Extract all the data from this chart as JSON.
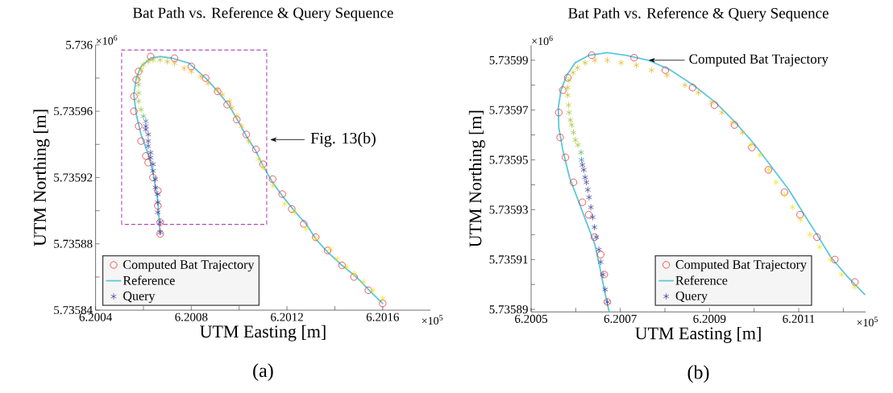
{
  "chart_data": [
    {
      "type": "line",
      "title": "Bat Path vs. Reference & Query Sequence",
      "xlabel": "UTM Easting [m]",
      "ylabel": "UTM Northing [m]",
      "xlim": [
        6.2004,
        6.2018
      ],
      "ylim": [
        5.73584,
        5.736
      ],
      "xticks": [
        6.2004,
        {
          "value": 6.2006,
          "label": null
        },
        6.2008,
        {
          "value": 6.201,
          "label": null
        },
        6.2012,
        {
          "value": 6.2014,
          "label": null
        },
        6.2016
      ],
      "yticks": [
        5.73584,
        {
          "value": 5.73586,
          "label": null
        },
        5.73588,
        {
          "value": 5.7359,
          "label": null
        },
        5.73592,
        {
          "value": 5.73594,
          "label": null
        },
        5.73596,
        {
          "value": 5.73598,
          "label": null
        },
        5.736
      ],
      "legend": "bottom left",
      "annotations": [
        "Fig. 13(b)",
        "×10$^{5}$",
        "×10$^{6}$",
        "(a)"
      ],
      "series": [
        {
          "type": "scatter",
          "marker": "circle",
          "color": "#e8262a",
          "name": "Computed Bat Trajectory",
          "x": [
            6.20067,
            6.20067,
            6.20066,
            6.20066,
            6.20064,
            6.20062,
            6.20061,
            6.20059,
            6.20058,
            6.20056,
            6.20056,
            6.20057,
            6.20058,
            6.20063,
            6.20073,
            6.2008,
            6.20086,
            6.20091,
            6.20095,
            6.20099,
            6.20103,
            6.20107,
            6.2011,
            6.20114,
            6.20118,
            6.20122,
            6.20127,
            6.20132,
            6.20137,
            6.20143,
            6.20148,
            6.20154,
            6.2016
          ],
          "values": [
            5.735886,
            5.735893,
            5.735903,
            5.735912,
            5.73592,
            5.735929,
            5.735933,
            5.735942,
            5.735951,
            5.73596,
            5.735969,
            5.735979,
            5.735984,
            5.735993,
            5.735992,
            5.735987,
            5.73598,
            5.735972,
            5.735964,
            5.735955,
            5.735946,
            5.735937,
            5.735928,
            5.735919,
            5.73591,
            5.735901,
            5.735892,
            5.735884,
            5.735876,
            5.735867,
            5.73586,
            5.735852,
            5.735844
          ]
        },
        {
          "type": "line",
          "color": "#5bc8dc",
          "name": "Reference",
          "x": [
            6.20067,
            6.20066,
            6.20064,
            6.20062,
            6.20059,
            6.20057,
            6.20056,
            6.20057,
            6.20059,
            6.20063,
            6.20067,
            6.20072,
            6.20079,
            6.20086,
            6.20091,
            6.20096,
            6.201,
            6.20103,
            6.20107,
            6.2011,
            6.20114,
            6.20118,
            6.20123,
            6.20128,
            6.20132,
            6.20137,
            6.20143,
            6.20149,
            6.20155,
            6.2016
          ],
          "values": [
            5.735886,
            5.735906,
            5.735923,
            5.735934,
            5.735946,
            5.735958,
            5.73597,
            5.73598,
            5.735987,
            5.735992,
            5.735993,
            5.735992,
            5.735989,
            5.73598,
            5.735972,
            5.735963,
            5.735953,
            5.735945,
            5.735936,
            5.735927,
            5.735917,
            5.735909,
            5.7359,
            5.735892,
            5.735883,
            5.735875,
            5.735867,
            5.73586,
            5.735851,
            5.735844
          ]
        },
        {
          "type": "scatter",
          "marker": "cross",
          "color": "#3d3d9a",
          "name": "Query",
          "x": [
            6.20067,
            6.20067,
            6.20066,
            6.20066,
            6.20066,
            6.20065,
            6.20065,
            6.20064,
            6.20064,
            6.20063,
            6.20063,
            6.20062,
            6.20062,
            6.20062,
            6.20061,
            6.20061,
            6.20061,
            6.2006,
            6.20059,
            6.20058,
            6.20058,
            6.20058,
            6.20058,
            6.20059,
            6.2006,
            6.20062,
            6.20064,
            6.20067,
            6.2007,
            6.20073,
            6.20077,
            6.2008,
            6.20084,
            6.20087,
            6.20091,
            6.20093,
            6.20096,
            6.20097,
            6.20099,
            6.20101,
            6.20104,
            6.20108,
            6.2011,
            6.20114,
            6.20119,
            6.20123,
            6.20128,
            6.20132,
            6.20138,
            6.20141,
            6.20145,
            6.20148,
            6.20152,
            6.20156,
            6.2016
          ],
          "values": [
            5.735887,
            5.735893,
            5.735899,
            5.735905,
            5.73591,
            5.735914,
            5.735919,
            5.735924,
            5.735928,
            5.735932,
            5.735935,
            5.735939,
            5.735942,
            5.735946,
            5.735949,
            5.735951,
            5.735954,
            5.735957,
            5.735961,
            5.735966,
            5.735971,
            5.735976,
            5.73598,
            5.735985,
            5.735988,
            5.73599,
            5.735991,
            5.735991,
            5.73599,
            5.735989,
            5.735986,
            5.735984,
            5.735981,
            5.735977,
            5.735973,
            5.73597,
            5.735966,
            5.735962,
            5.735957,
            5.735951,
            5.735942,
            5.735931,
            5.735926,
            5.735915,
            5.735904,
            5.735899,
            5.735889,
            5.735883,
            5.735877,
            5.735871,
            5.735866,
            5.735862,
            5.735857,
            5.735852,
            5.735847
          ],
          "colors": [
            "#3d3d9a",
            "#3d3d9a",
            "#3d3d9a",
            "#3d3d9a",
            "#3d3d9a",
            "#3d3d9a",
            "#3d3d9a",
            "#3d3d9a",
            "#3d3d9a",
            "#3d3d9a",
            "#3d3d9a",
            "#3d3d9a",
            "#3d3d9a",
            "#3d3d9a",
            "#3d3d9a",
            "#3d3d9a",
            "#3a78c8",
            "#5cb85c",
            "#9cc43a",
            "#9cc43a",
            "#9cc43a",
            "#9cc43a",
            "#9cc43a",
            "#c5c02a",
            "#c5c02a",
            "#c5c02a",
            "#c5c02a",
            "#c5c02a",
            "#c5c02a",
            "#f0b429",
            "#f0b429",
            "#f0b429",
            "#f0b429",
            "#f0b429",
            "#f0b429",
            "#f0b429",
            "#f0b429",
            "#f0b429",
            "#f0b429",
            "#f0b429",
            "#f0b429",
            "#f2e01c",
            "#f2e01c",
            "#f2e01c",
            "#f2e01c",
            "#f2e01c",
            "#f2e01c",
            "#f2e01c",
            "#f2e01c",
            "#f2e01c",
            "#f2e01c",
            "#f2e01c",
            "#f2e01c",
            "#f2e01c",
            "#f2e01c"
          ]
        }
      ]
    },
    {
      "type": "line",
      "title": "Bat Path vs. Reference & Query Sequence",
      "xlabel": "UTM Easting [m]",
      "ylabel": "UTM Northing [m]",
      "xlim": [
        6.2005,
        6.20125
      ],
      "ylim": [
        5.735889,
        5.735996
      ],
      "xticks": [
        6.2005,
        {
          "value": 6.2006,
          "label": null
        },
        6.2007,
        {
          "value": 6.2008,
          "label": null
        },
        6.2009,
        {
          "value": 6.201,
          "label": null
        },
        6.2011,
        {
          "value": 6.2012,
          "label": null
        }
      ],
      "yticks": [
        5.73589,
        {
          "value": 5.7359,
          "label": null
        },
        5.73591,
        {
          "value": 5.73592,
          "label": null
        },
        5.73593,
        {
          "value": 5.73594,
          "label": null
        },
        5.73595,
        {
          "value": 5.73596,
          "label": null
        },
        5.73597,
        {
          "value": 5.73598,
          "label": null
        },
        5.73599
      ],
      "legend": "bottom right",
      "annotations": [
        {
          "text": "Computed Bat Trajectory",
          "x": 6.200763,
          "y": 5.73599
        },
        "×10$^{5}$",
        "×10$^{6}$",
        "(b)"
      ],
      "series": [
        {
          "type": "scatter",
          "marker": "circle",
          "color": "#e8262a",
          "name": "Computed Bat Trajectory",
          "x": [
            6.200671,
            6.200664,
            6.200656,
            6.200642,
            6.200629,
            6.200615,
            6.200595,
            6.200577,
            6.200565,
            6.200562,
            6.200571,
            6.200582,
            6.200636,
            6.200731,
            6.200801,
            6.200862,
            6.200911,
            6.200956,
            6.200995,
            6.201032,
            6.201068,
            6.201103,
            6.201141,
            6.201181,
            6.201226
          ],
          "values": [
            5.735893,
            5.735904,
            5.735912,
            5.735919,
            5.735928,
            5.735933,
            5.735941,
            5.735951,
            5.735959,
            5.735969,
            5.735978,
            5.735983,
            5.735992,
            5.735991,
            5.735986,
            5.735979,
            5.735972,
            5.735964,
            5.735955,
            5.735946,
            5.735937,
            5.735928,
            5.735919,
            5.73591,
            5.735901
          ]
        },
        {
          "type": "line",
          "color": "#5bc8dc",
          "name": "Reference",
          "x": [
            6.200675,
            6.200665,
            6.200654,
            6.200643,
            6.200624,
            6.200605,
            6.200586,
            6.200571,
            6.200562,
            6.200561,
            6.200567,
            6.20058,
            6.200599,
            6.20063,
            6.200671,
            6.200712,
            6.200763,
            6.200813,
            6.200864,
            6.200914,
            6.200958,
            6.201002,
            6.20104,
            6.201078,
            6.201109,
            6.201141,
            6.201172,
            6.20121,
            6.201248
          ],
          "values": [
            5.735889,
            5.735897,
            5.735907,
            5.735916,
            5.735925,
            5.735934,
            5.735943,
            5.735954,
            5.735963,
            5.735971,
            5.735978,
            5.735984,
            5.735989,
            5.735992,
            5.735993,
            5.735992,
            5.73599,
            5.735986,
            5.73598,
            5.735973,
            5.735965,
            5.735956,
            5.735947,
            5.735938,
            5.735929,
            5.73592,
            5.735911,
            5.735903,
            5.735896
          ]
        },
        {
          "type": "scatter",
          "marker": "cross",
          "color": "#3d3d9a",
          "name": "Query",
          "x": [
            6.200671,
            6.200666,
            6.200661,
            6.200656,
            6.200652,
            6.200646,
            6.200642,
            6.200638,
            6.200634,
            6.20063,
            6.200627,
            6.200624,
            6.200621,
            6.200618,
            6.200615,
            6.200613,
            6.200612,
            6.200605,
            6.200599,
            6.200595,
            6.200591,
            6.200588,
            6.200585,
            6.200584,
            6.200582,
            6.200582,
            6.200585,
            6.200594,
            6.200604,
            6.200621,
            6.200643,
            6.200671,
            6.200702,
            6.200736,
            6.20077,
            6.200805,
            6.200845,
            6.200875,
            6.200905,
            6.200928,
            6.200952,
            6.200974,
            6.200993,
            6.201013,
            6.201032,
            6.201049,
            6.201068,
            6.201086,
            6.201104,
            6.201125,
            6.201147,
            6.201171,
            6.201196,
            6.201226
          ],
          "values": [
            5.735893,
            5.735898,
            5.735904,
            5.735909,
            5.735914,
            5.735919,
            5.735923,
            5.735927,
            5.735931,
            5.735935,
            5.735938,
            5.735941,
            5.735943,
            5.735946,
            5.735948,
            5.73595,
            5.735953,
            5.735956,
            5.735958,
            5.735961,
            5.735964,
            5.735966,
            5.735969,
            5.735972,
            5.735976,
            5.735979,
            5.735982,
            5.735985,
            5.735987,
            5.735989,
            5.73599,
            5.73599,
            5.735989,
            5.735988,
            5.735986,
            5.735984,
            5.73598,
            5.735977,
            5.735973,
            5.735969,
            5.735965,
            5.735961,
            5.735956,
            5.735952,
            5.735946,
            5.735941,
            5.735936,
            5.735931,
            5.735926,
            5.73592,
            5.735915,
            5.73591,
            5.735904,
            5.735899
          ],
          "colors": [
            "#3d3d9a",
            "#3d3d9a",
            "#3d3d9a",
            "#3d3d9a",
            "#3d3d9a",
            "#3d3d9a",
            "#3d3d9a",
            "#3d3d9a",
            "#3d3d9a",
            "#3d3d9a",
            "#3d3d9a",
            "#3d3d9a",
            "#3d3d9a",
            "#3d3d9a",
            "#3d3d9a",
            "#3a78c8",
            "#5cb85c",
            "#9cc43a",
            "#9cc43a",
            "#9cc43a",
            "#9cc43a",
            "#9cc43a",
            "#9cc43a",
            "#c5c02a",
            "#c5c02a",
            "#c5c02a",
            "#c5c02a",
            "#c5c02a",
            "#c5c02a",
            "#c5c02a",
            "#f0b429",
            "#f0b429",
            "#f0b429",
            "#f0b429",
            "#f0b429",
            "#f0b429",
            "#f0b429",
            "#f0b429",
            "#f0b429",
            "#f0b429",
            "#f0b429",
            "#f0b429",
            "#f2e01c",
            "#f2e01c",
            "#f2e01c",
            "#f2e01c",
            "#f2e01c",
            "#f2e01c",
            "#f2e01c",
            "#f2e01c",
            "#f2e01c",
            "#f2e01c",
            "#f2e01c",
            "#f2e01c"
          ]
        }
      ]
    }
  ]
}
